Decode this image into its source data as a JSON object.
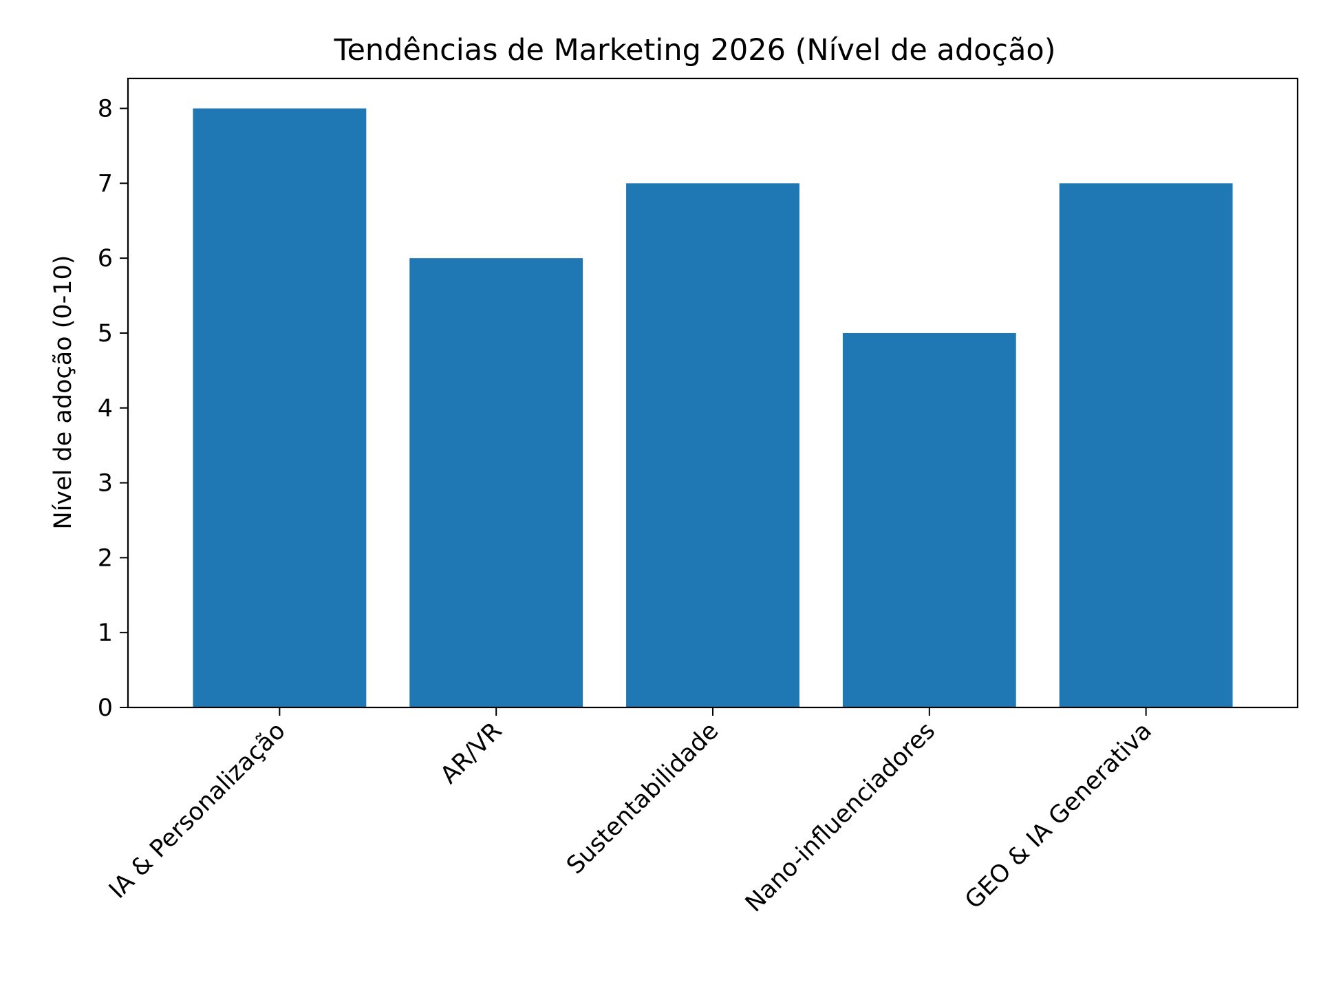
{
  "chart_data": {
    "type": "bar",
    "title": "Tendências de Marketing 2026 (Nível de adoção)",
    "xlabel": "",
    "ylabel": "Nível de adoção (0-10)",
    "categories": [
      "IA & Personalização",
      "AR/VR",
      "Sustentabilidade",
      "Nano-influenciadores",
      "GEO & IA Generativa"
    ],
    "values": [
      8,
      6,
      7,
      5,
      7
    ],
    "ylim": [
      0,
      8.4
    ],
    "yticks": [
      0,
      1,
      2,
      3,
      4,
      5,
      6,
      7,
      8
    ],
    "grid": false,
    "legend": "none",
    "bar_color": "#1f77b4"
  }
}
